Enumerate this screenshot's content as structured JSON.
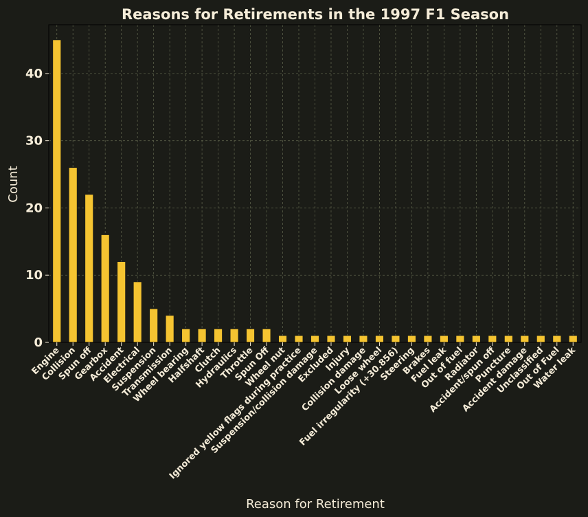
{
  "colors": {
    "background": "#1b1c17",
    "text": "#f5ecd8",
    "bar": "#f5c431",
    "bar_edge": "#1b1c17",
    "grid": "#5a5e48"
  },
  "chart_data": {
    "type": "bar",
    "title": "Reasons for Retirements in the 1997 F1 Season",
    "xlabel": "Reason for Retirement",
    "ylabel": "Count",
    "ylim": [
      0,
      47.25
    ],
    "yticks": [
      0,
      10,
      20,
      30,
      40
    ],
    "grid": true,
    "legend": "none",
    "categories": [
      "Engine",
      "Collision",
      "Spun off",
      "Gearbox",
      "Accident",
      "Electrical",
      "Suspension",
      "Transmission",
      "Wheel bearing",
      "Halfshaft",
      "Clutch",
      "Hydraulics",
      "Throttle",
      "Spun Off",
      "Wheel nut",
      "Ignored yellow flags during practice",
      "Suspension/collision damage",
      "Excluded",
      "Injury",
      "Collision damage",
      "Loose wheel",
      "Fuel irregularity (+30.856)",
      "Steering",
      "Brakes",
      "Fuel leak",
      "Out of fuel",
      "Radiator",
      "Accident/spun off",
      "Puncture",
      "Accident damage",
      "Unclassified",
      "Out of Fuel",
      "Water leak"
    ],
    "values": [
      45,
      26,
      22,
      16,
      12,
      9,
      5,
      4,
      2,
      2,
      2,
      2,
      2,
      2,
      1,
      1,
      1,
      1,
      1,
      1,
      1,
      1,
      1,
      1,
      1,
      1,
      1,
      1,
      1,
      1,
      1,
      1,
      1
    ]
  }
}
